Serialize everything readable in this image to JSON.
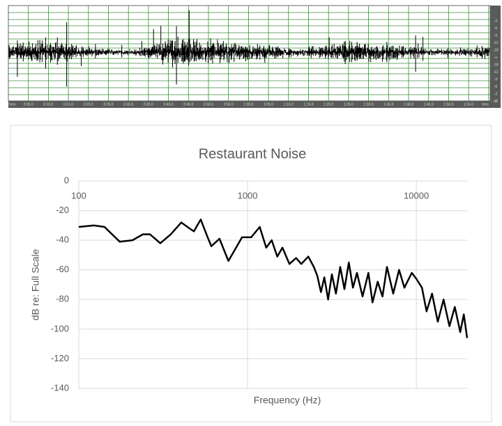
{
  "waveform": {
    "time_labels": [
      "hms",
      "0:05.0",
      "0:10.0",
      "0:15.0",
      "0:20.0",
      "0:25.0",
      "0:30.0",
      "0:35.0",
      "0:40.0",
      "0:45.0",
      "0:50.0",
      "0:55.0",
      "1:00.0",
      "1:05.0",
      "1:10.0",
      "1:15.0",
      "1:20.0",
      "1:25.0",
      "1:30.0",
      "1:35.0",
      "1:40.0",
      "1:45.0",
      "1:50.0",
      "1:55.0",
      "hms"
    ],
    "db_labels": [
      "-3",
      "-6",
      "-9",
      "-12",
      "-18",
      "-∞",
      "-18",
      "-12",
      "-9",
      "-6",
      "-3",
      "dB"
    ]
  },
  "chart_data": {
    "type": "line",
    "title": "Restaurant Noise",
    "x_label": "Frequency (Hz)",
    "y_label": "dB re: Full Scale",
    "xscale": "log",
    "xlim": [
      100,
      20000
    ],
    "xticks": [
      100,
      1000,
      10000
    ],
    "ylim": [
      -140,
      0
    ],
    "yticks": [
      0,
      -20,
      -40,
      -60,
      -80,
      -100,
      -120,
      -140
    ],
    "grid": true,
    "color": "#000000",
    "x": [
      100,
      123,
      142,
      175,
      208,
      240,
      264,
      304,
      351,
      405,
      453,
      481,
      528,
      580,
      610,
      682,
      770,
      865,
      927,
      1050,
      1180,
      1290,
      1390,
      1500,
      1610,
      1770,
      1940,
      2080,
      2290,
      2470,
      2590,
      2720,
      2850,
      3000,
      3160,
      3340,
      3540,
      3750,
      3980,
      4210,
      4450,
      4800,
      5200,
      5500,
      5900,
      6300,
      6700,
      7300,
      7900,
      8500,
      9400,
      10000,
      10800,
      11500,
      12400,
      13400,
      14500,
      15700,
      16900,
      18200,
      19100,
      20000
    ],
    "values": [
      -31,
      -30,
      -31,
      -41,
      -40,
      -36,
      -36,
      -42,
      -36,
      -28,
      -32,
      -34,
      -26,
      -38,
      -44,
      -39,
      -54,
      -44,
      -38,
      -38,
      -31,
      -45,
      -40,
      -51,
      -45,
      -56,
      -52,
      -56,
      -51,
      -58,
      -64,
      -75,
      -65,
      -80,
      -63,
      -76,
      -58,
      -73,
      -55,
      -72,
      -62,
      -78,
      -62,
      -82,
      -68,
      -78,
      -58,
      -76,
      -60,
      -72,
      -62,
      -66,
      -72,
      -88,
      -76,
      -95,
      -80,
      -98,
      -85,
      -102,
      -90,
      -106
    ]
  }
}
